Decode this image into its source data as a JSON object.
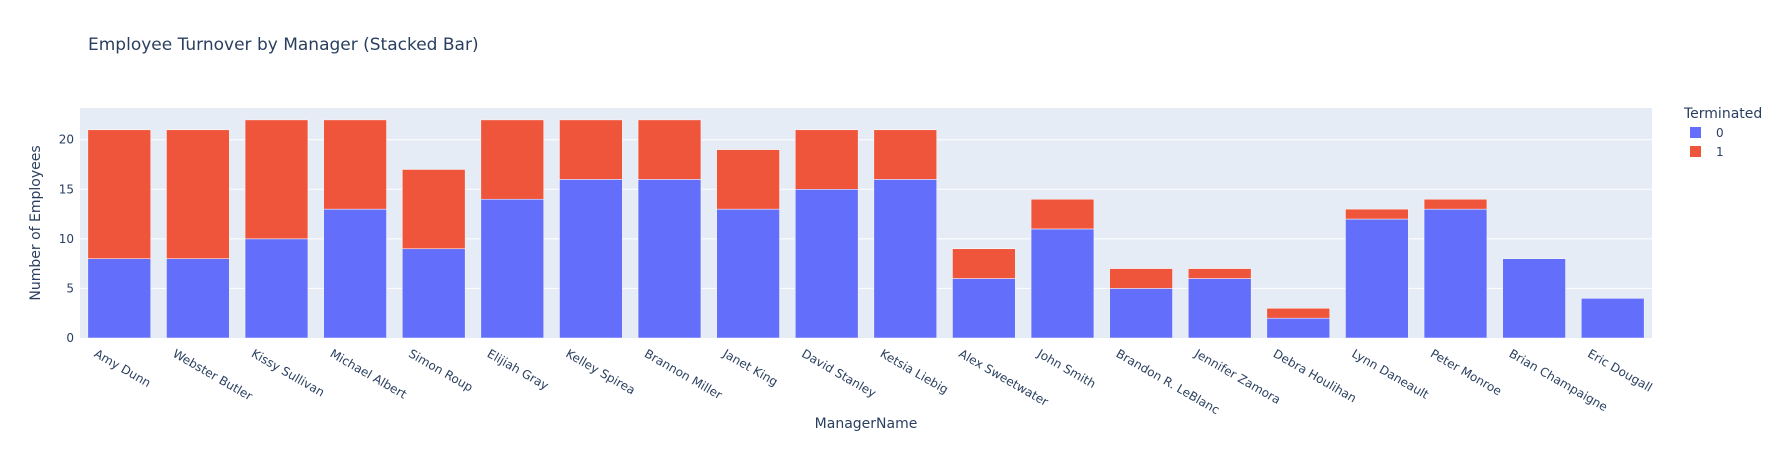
{
  "chart_data": {
    "type": "bar",
    "stacked": true,
    "title": "Employee Turnover by Manager (Stacked Bar)",
    "xlabel": "ManagerName",
    "ylabel": "Number of Employees",
    "ylim": [
      0,
      23.2
    ],
    "yticks": [
      0,
      5,
      10,
      15,
      20
    ],
    "grid": true,
    "legend_title": "Terminated",
    "legend_position": "top-right",
    "categories": [
      "Amy Dunn",
      "Webster Butler",
      "Kissy Sullivan",
      "Michael Albert",
      "Simon Roup",
      "Elijiah Gray",
      "Kelley Spirea",
      "Brannon Miller",
      "Janet King",
      "David Stanley",
      "Ketsia Liebig",
      "Alex Sweetwater",
      "John Smith",
      "Brandon R. LeBlanc",
      "Jennifer Zamora",
      "Debra Houlihan",
      "Lynn Daneault",
      "Peter Monroe",
      "Brian Champaigne",
      "Eric Dougall"
    ],
    "series": [
      {
        "name": "0",
        "color": "#636efa",
        "values": [
          8,
          8,
          10,
          13,
          9,
          14,
          16,
          16,
          13,
          15,
          16,
          6,
          11,
          5,
          6,
          2,
          12,
          13,
          8,
          4
        ]
      },
      {
        "name": "1",
        "color": "#ef553b",
        "values": [
          13,
          13,
          12,
          9,
          8,
          8,
          6,
          6,
          6,
          6,
          5,
          3,
          3,
          2,
          1,
          1,
          1,
          1,
          0,
          0
        ]
      }
    ]
  }
}
